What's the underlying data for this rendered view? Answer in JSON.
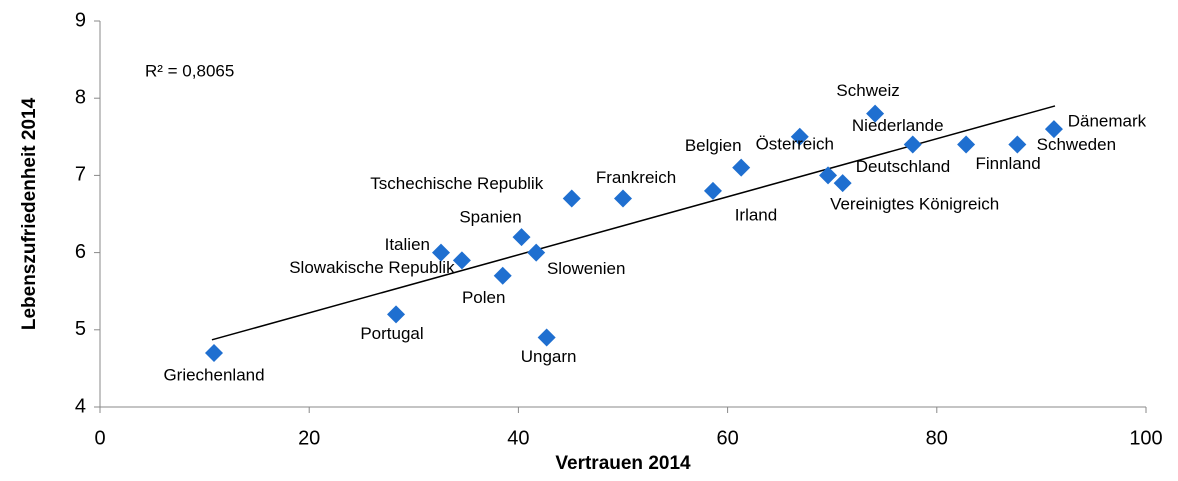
{
  "chart_data": {
    "type": "scatter",
    "xlabel": "Vertrauen 2014",
    "ylabel": "Lebenszufriedenheit 2014",
    "annotation": "R² = 0,8065",
    "color": "#1f6fd0",
    "xlim": [
      0,
      100
    ],
    "xticks": [
      0,
      20,
      40,
      60,
      80,
      100
    ],
    "ylim": [
      4,
      9
    ],
    "yticks": [
      4,
      5,
      6,
      7,
      8,
      9
    ],
    "labels": [
      "Griechenland",
      "Portugal",
      "Italien",
      "Slowakische Republik",
      "Spanien",
      "Polen",
      "Slowenien",
      "Tschechische Republik",
      "Ungarn",
      "Frankreich",
      "Irland",
      "Belgien",
      "Österreich",
      "Schweiz",
      "Niederlande",
      "Deutschland",
      "Vereinigtes Königreich",
      "Finnland",
      "Schweden",
      "Dänemark"
    ],
    "x": [
      10.9,
      28.3,
      32.6,
      34.6,
      40.3,
      38.5,
      41.7,
      45.1,
      42.7,
      50.0,
      58.6,
      61.3,
      66.9,
      74.1,
      77.7,
      69.6,
      71.0,
      82.8,
      87.7,
      91.2
    ],
    "y": [
      4.7,
      5.2,
      6.0,
      5.9,
      6.2,
      5.7,
      6.0,
      6.7,
      4.9,
      6.7,
      6.8,
      7.1,
      7.5,
      7.8,
      7.4,
      7.0,
      6.9,
      7.4,
      7.4,
      7.6
    ],
    "trendline": {
      "x": [
        10.7,
        91.3
      ],
      "y": [
        4.87,
        7.9
      ]
    }
  }
}
